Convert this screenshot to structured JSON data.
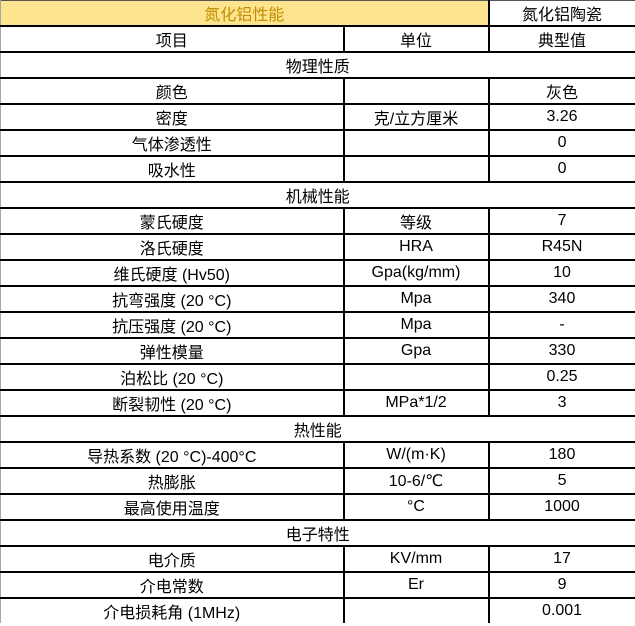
{
  "table": {
    "title": "氮化铝性能",
    "product": "氮化铝陶瓷",
    "columns": [
      "项目",
      "单位",
      "典型值"
    ],
    "colors": {
      "title_bg": "#ffe48f",
      "title_text": "#bf8f00",
      "grid_border": "#000000",
      "left_edge": "#a6a6a6",
      "body_text": "#000000",
      "cell_bg": "#ffffff"
    },
    "sections": [
      {
        "name": "物理性质",
        "rows": [
          [
            "颜色",
            "",
            "灰色"
          ],
          [
            "密度",
            "克/立方厘米",
            "3.26"
          ],
          [
            "气体渗透性",
            "",
            "0"
          ],
          [
            "吸水性",
            "",
            "0"
          ]
        ]
      },
      {
        "name": "机械性能",
        "rows": [
          [
            "蒙氏硬度",
            "等级",
            "7"
          ],
          [
            "洛氏硬度",
            "HRA",
            "R45N"
          ],
          [
            "维氏硬度 (Hv50)",
            "Gpa(kg/mm)",
            "10"
          ],
          [
            "抗弯强度 (20 °C)",
            "Mpa",
            "340"
          ],
          [
            "抗压强度 (20 °C)",
            "Mpa",
            "-"
          ],
          [
            "弹性模量",
            "Gpa",
            "330"
          ],
          [
            "泊松比 (20 °C)",
            "",
            "0.25"
          ],
          [
            "断裂韧性 (20 °C)",
            "MPa*1/2",
            "3"
          ]
        ]
      },
      {
        "name": "热性能",
        "rows": [
          [
            "导热系数 (20 °C)-400°C",
            "W/(m·K)",
            "180"
          ],
          [
            "热膨胀",
            "10-6/℃",
            "5"
          ],
          [
            "最高使用温度",
            "°C",
            "1000"
          ]
        ]
      },
      {
        "name": "电子特性",
        "rows": [
          [
            "电介质",
            "KV/mm",
            "17"
          ],
          [
            "介电常数",
            "Er",
            "9"
          ],
          [
            "介电损耗角 (1MHz)",
            "",
            "0.001"
          ]
        ]
      }
    ]
  }
}
